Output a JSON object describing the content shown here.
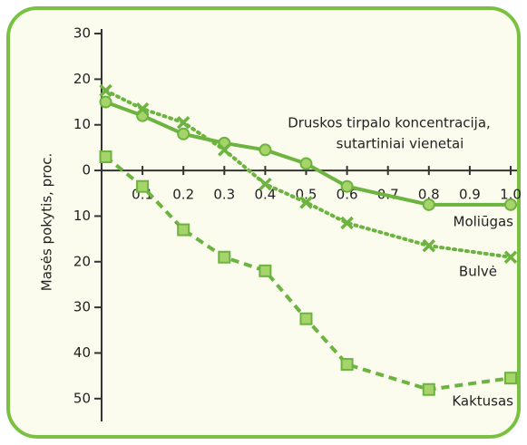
{
  "chart_data": {
    "type": "line",
    "x_label": [
      "Druskos tirpalo koncentracija,",
      "sutartiniai vienetai"
    ],
    "y_label": "Masės pokytis, proc.",
    "xlim": [
      0,
      1
    ],
    "xticks": [
      0.1,
      0.2,
      0.3,
      0.4,
      0.5,
      0.6,
      0.7,
      0.8,
      0.9,
      {
        "value": 1,
        "label": "1.0"
      }
    ],
    "ylim": [
      -55,
      31
    ],
    "yticks": [
      30,
      20,
      10,
      0,
      {
        "value": -10,
        "label": "10"
      },
      {
        "value": -20,
        "label": "20"
      },
      {
        "value": -30,
        "label": "30"
      },
      {
        "value": -40,
        "label": "40"
      },
      {
        "value": -50,
        "label": "50"
      }
    ],
    "series": [
      {
        "name": "Moliūgas",
        "color": "#6cb33f",
        "marker": "circle",
        "dash": "solid",
        "x": [
          0.01,
          0.1,
          0.2,
          0.3,
          0.4,
          0.5,
          0.6,
          0.8,
          1.0
        ],
        "values": [
          15,
          12,
          8,
          6,
          4.5,
          1.5,
          -3.5,
          -7.5,
          -7.5
        ]
      },
      {
        "name": "Bulvė",
        "color": "#6cb33f",
        "marker": "x",
        "dash": "dotted",
        "x": [
          0.01,
          0.1,
          0.2,
          0.3,
          0.4,
          0.5,
          0.6,
          0.8,
          1.0
        ],
        "values": [
          17.5,
          13.5,
          10.5,
          4.5,
          -3,
          -7,
          -11.5,
          -16.5,
          -19
        ]
      },
      {
        "name": "Kaktusas",
        "color": "#6cb33f",
        "marker": "square",
        "dash": "dashed",
        "x": [
          0.01,
          0.1,
          0.2,
          0.3,
          0.4,
          0.5,
          0.6,
          0.8,
          1.0
        ],
        "values": [
          3,
          -3.5,
          -13,
          -19,
          -22,
          -32.5,
          -42.5,
          -48,
          -45.5
        ]
      }
    ]
  }
}
